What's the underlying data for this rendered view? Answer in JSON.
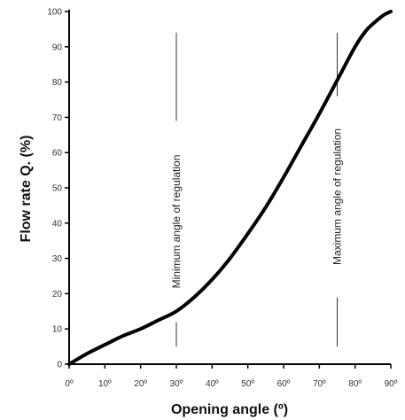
{
  "chart_data": {
    "type": "line",
    "xlabel": "Opening angle (º)",
    "ylabel": "Flow rate Q. (%)",
    "xlim": [
      0,
      90
    ],
    "ylim": [
      0,
      100
    ],
    "x_ticks": [
      0,
      10,
      20,
      30,
      40,
      50,
      60,
      70,
      80,
      90
    ],
    "x_tick_labels": [
      "0º",
      "10º",
      "20º",
      "30º",
      "40º",
      "50º",
      "60º",
      "70º",
      "80º",
      "90º"
    ],
    "y_ticks": [
      0,
      10,
      20,
      30,
      40,
      50,
      60,
      70,
      80,
      90,
      100
    ],
    "y_tick_labels": [
      "0",
      "10",
      "20",
      "30",
      "40",
      "50",
      "60",
      "70",
      "80",
      "90",
      "100"
    ],
    "grid": false,
    "series": [
      {
        "x": [
          0,
          5,
          10,
          15,
          20,
          25,
          30,
          35,
          40,
          45,
          50,
          55,
          60,
          65,
          70,
          75,
          80,
          83,
          85,
          88,
          90
        ],
        "y": [
          0,
          3,
          5.5,
          8,
          10,
          12.5,
          15,
          19,
          24,
          30,
          37,
          44.5,
          53,
          62,
          71,
          80.5,
          90,
          94.5,
          96.5,
          99,
          100
        ]
      }
    ],
    "annotations": [
      {
        "text": "Minimum angle of regulation",
        "x": 30,
        "orientation": "vertical"
      },
      {
        "text": "Maximum angle of regulation",
        "x": 75,
        "orientation": "vertical"
      }
    ],
    "style": {
      "line_color": "#000000",
      "axis_color": "#000000",
      "annot_line_color": "#333333"
    }
  }
}
